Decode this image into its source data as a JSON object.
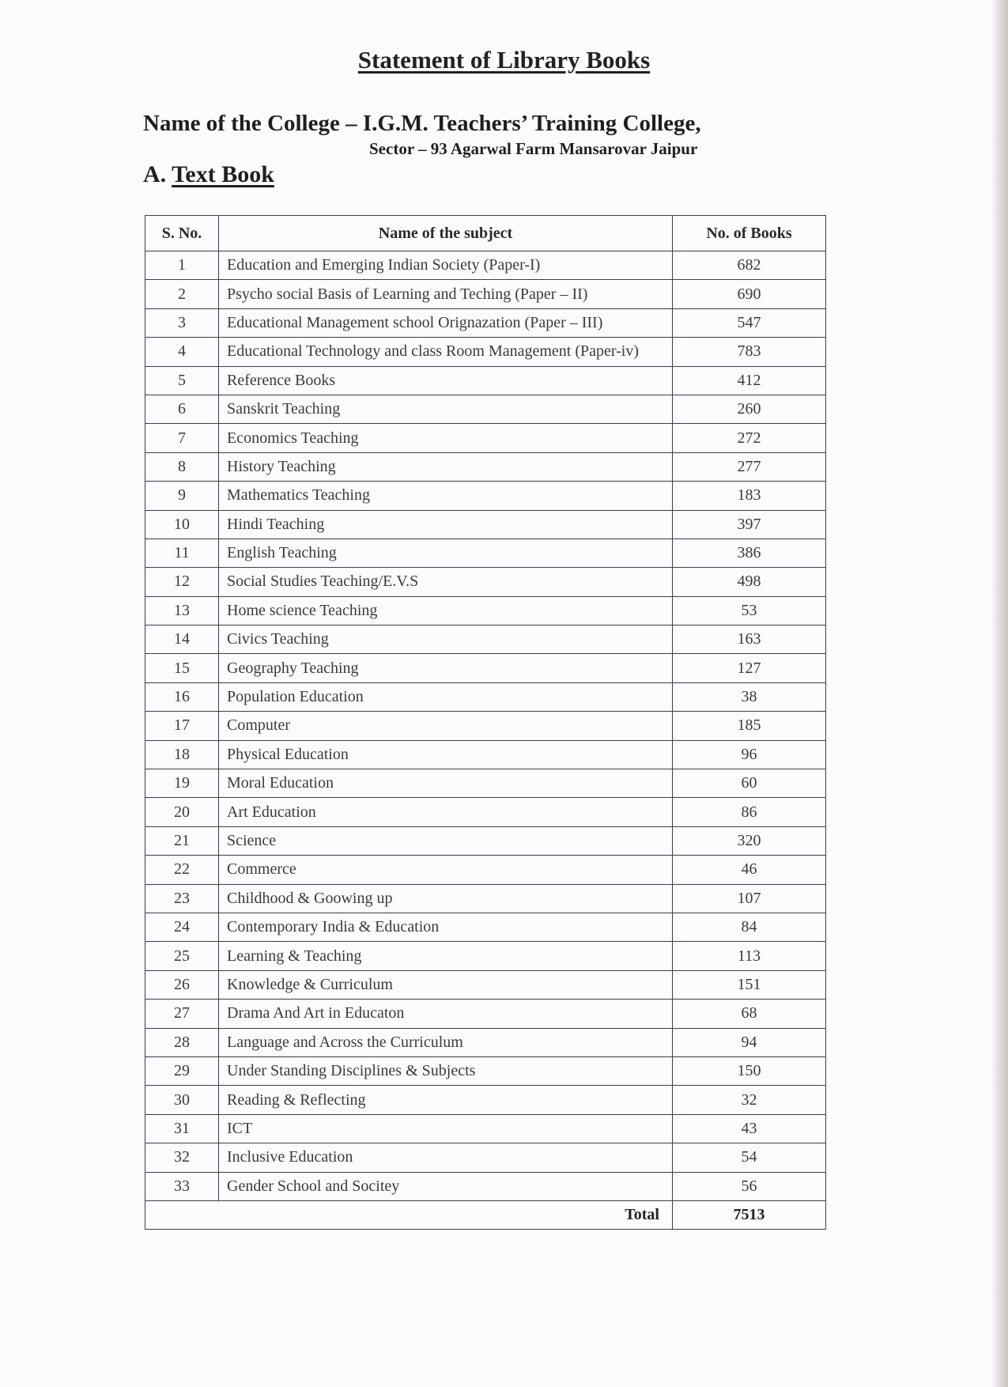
{
  "title": "Statement of Library Books",
  "college_line": "Name of the College – I.G.M. Teachers’ Training College,",
  "address_line": "Sector – 93 Agarwal Farm Mansarovar Jaipur",
  "section": {
    "prefix": "A.",
    "label": "Text Book"
  },
  "table": {
    "headers": {
      "sno": "S. No.",
      "subject": "Name of the subject",
      "books": "No. of Books"
    },
    "rows": [
      {
        "sno": "1",
        "subject": "Education and Emerging Indian Society (Paper-I)",
        "books": "682"
      },
      {
        "sno": "2",
        "subject": "Psycho social Basis of Learning and Teching (Paper – II)",
        "books": "690"
      },
      {
        "sno": "3",
        "subject": "Educational Management school Orignazation (Paper – III)",
        "books": "547"
      },
      {
        "sno": "4",
        "subject": "Educational Technology and class Room Management (Paper-iv)",
        "books": "783"
      },
      {
        "sno": "5",
        "subject": "Reference Books",
        "books": "412"
      },
      {
        "sno": "6",
        "subject": "Sanskrit Teaching",
        "books": "260"
      },
      {
        "sno": "7",
        "subject": "Economics Teaching",
        "books": "272"
      },
      {
        "sno": "8",
        "subject": "History Teaching",
        "books": "277"
      },
      {
        "sno": "9",
        "subject": "Mathematics Teaching",
        "books": "183"
      },
      {
        "sno": "10",
        "subject": "Hindi Teaching",
        "books": "397"
      },
      {
        "sno": "11",
        "subject": "English Teaching",
        "books": "386"
      },
      {
        "sno": "12",
        "subject": "Social Studies Teaching/E.V.S",
        "books": "498"
      },
      {
        "sno": "13",
        "subject": "Home science Teaching",
        "books": "53"
      },
      {
        "sno": "14",
        "subject": "Civics Teaching",
        "books": "163"
      },
      {
        "sno": "15",
        "subject": "Geography Teaching",
        "books": "127"
      },
      {
        "sno": "16",
        "subject": "Population Education",
        "books": "38"
      },
      {
        "sno": "17",
        "subject": "Computer",
        "books": "185"
      },
      {
        "sno": "18",
        "subject": "Physical Education",
        "books": "96"
      },
      {
        "sno": "19",
        "subject": "Moral Education",
        "books": "60"
      },
      {
        "sno": "20",
        "subject": "Art Education",
        "books": "86"
      },
      {
        "sno": "21",
        "subject": "Science",
        "books": "320"
      },
      {
        "sno": "22",
        "subject": "Commerce",
        "books": "46"
      },
      {
        "sno": "23",
        "subject": "Childhood & Goowing up",
        "books": "107"
      },
      {
        "sno": "24",
        "subject": "Contemporary India & Education",
        "books": "84"
      },
      {
        "sno": "25",
        "subject": "Learning & Teaching",
        "books": "113"
      },
      {
        "sno": "26",
        "subject": "Knowledge & Curriculum",
        "books": "151"
      },
      {
        "sno": "27",
        "subject": "Drama And Art in Educaton",
        "books": "68"
      },
      {
        "sno": "28",
        "subject": "Language and Across the Curriculum",
        "books": "94"
      },
      {
        "sno": "29",
        "subject": "Under Standing Disciplines & Subjects",
        "books": "150"
      },
      {
        "sno": "30",
        "subject": "Reading & Reflecting",
        "books": "32"
      },
      {
        "sno": "31",
        "subject": "ICT",
        "books": "43"
      },
      {
        "sno": "32",
        "subject": "Inclusive Education",
        "books": "54"
      },
      {
        "sno": "33",
        "subject": "Gender School and Socitey",
        "books": "56"
      }
    ],
    "total_label": "Total",
    "total_value": "7513"
  }
}
